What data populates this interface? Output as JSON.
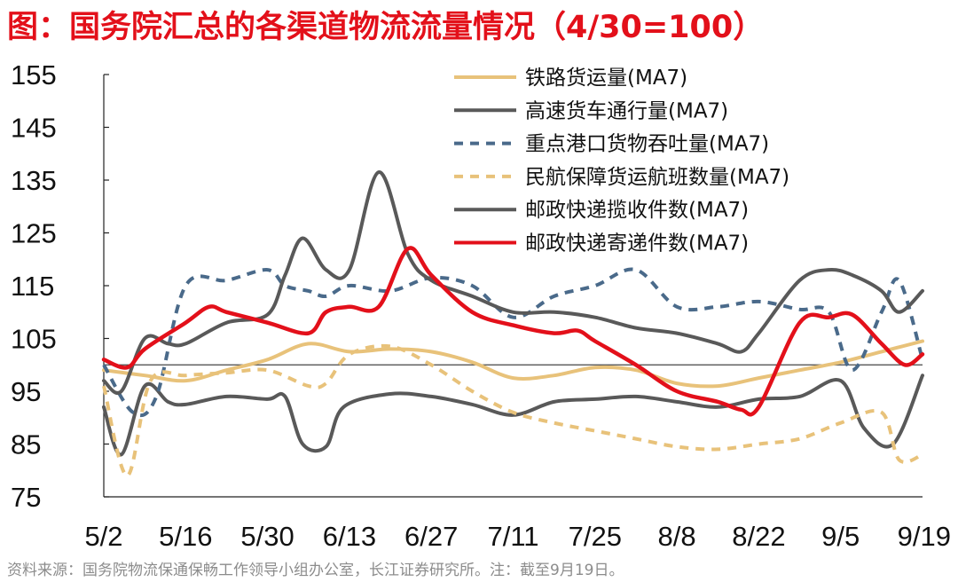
{
  "title": "图：国务院汇总的各渠道物流流量情况（4/30=100）",
  "source": "资料来源：国务院物流保通保畅工作领导小组办公室，长江证券研究所。注：截至9月19日。",
  "chart_data": {
    "type": "line",
    "title": "图：国务院汇总的各渠道物流流量情况（4/30=100）",
    "xlabel": "",
    "ylabel": "",
    "x_start": "5/2",
    "x_end": "9/19",
    "x_ticks": [
      "5/2",
      "5/16",
      "5/30",
      "6/13",
      "6/27",
      "7/11",
      "7/25",
      "8/8",
      "8/22",
      "9/5",
      "9/19"
    ],
    "y_ticks": [
      155,
      145,
      135,
      125,
      115,
      105,
      95,
      85,
      75
    ],
    "ylim": [
      75,
      155
    ],
    "baseline": 100,
    "legend_position": "top-right",
    "series": [
      {
        "name": "铁路货运量(MA7)",
        "color": "#e8c27a",
        "dash": "solid",
        "points": [
          [
            "5/2",
            99
          ],
          [
            "5/9",
            98
          ],
          [
            "5/16",
            97
          ],
          [
            "5/23",
            99
          ],
          [
            "5/30",
            101
          ],
          [
            "6/6",
            104
          ],
          [
            "6/13",
            102.5
          ],
          [
            "6/20",
            103
          ],
          [
            "6/27",
            102.5
          ],
          [
            "7/4",
            100.5
          ],
          [
            "7/11",
            97.5
          ],
          [
            "7/18",
            98
          ],
          [
            "7/25",
            99.5
          ],
          [
            "8/1",
            99
          ],
          [
            "8/8",
            96.5
          ],
          [
            "8/15",
            96
          ],
          [
            "8/22",
            97.5
          ],
          [
            "8/29",
            99
          ],
          [
            "9/5",
            100.5
          ],
          [
            "9/12",
            102.5
          ],
          [
            "9/19",
            104.5
          ]
        ]
      },
      {
        "name": "高速货车通行量(MA7)",
        "color": "#595959",
        "dash": "solid",
        "points": [
          [
            "5/2",
            92
          ],
          [
            "5/5",
            83
          ],
          [
            "5/9",
            96
          ],
          [
            "5/13",
            93
          ],
          [
            "5/16",
            92.5
          ],
          [
            "5/23",
            94
          ],
          [
            "5/30",
            93.5
          ],
          [
            "6/2",
            94
          ],
          [
            "6/5",
            85
          ],
          [
            "6/9",
            84.5
          ],
          [
            "6/12",
            92
          ],
          [
            "6/20",
            94.5
          ],
          [
            "6/27",
            94
          ],
          [
            "7/4",
            92.5
          ],
          [
            "7/11",
            90.5
          ],
          [
            "7/18",
            93
          ],
          [
            "7/25",
            93.5
          ],
          [
            "8/1",
            94
          ],
          [
            "8/8",
            93
          ],
          [
            "8/15",
            92
          ],
          [
            "8/22",
            93.5
          ],
          [
            "8/29",
            94
          ],
          [
            "9/5",
            97
          ],
          [
            "9/9",
            88
          ],
          [
            "9/14",
            85
          ],
          [
            "9/19",
            98
          ]
        ]
      },
      {
        "name": "重点港口货物吞吐量(MA7)",
        "color": "#4a6a8a",
        "dash": "dash",
        "points": [
          [
            "5/2",
            100
          ],
          [
            "5/7",
            91
          ],
          [
            "5/11",
            94
          ],
          [
            "5/16",
            115
          ],
          [
            "5/23",
            116
          ],
          [
            "5/30",
            118
          ],
          [
            "6/2",
            115
          ],
          [
            "6/6",
            114
          ],
          [
            "6/9",
            113
          ],
          [
            "6/13",
            115
          ],
          [
            "6/20",
            114
          ],
          [
            "6/27",
            116.5
          ],
          [
            "7/4",
            115
          ],
          [
            "7/11",
            109
          ],
          [
            "7/18",
            113
          ],
          [
            "7/25",
            115
          ],
          [
            "8/1",
            118
          ],
          [
            "8/8",
            111
          ],
          [
            "8/15",
            111
          ],
          [
            "8/22",
            112
          ],
          [
            "8/29",
            110.5
          ],
          [
            "9/3",
            110
          ],
          [
            "9/7",
            99
          ],
          [
            "9/12",
            110
          ],
          [
            "9/15",
            116
          ],
          [
            "9/19",
            101
          ]
        ]
      },
      {
        "name": "民航保障货运航班数量(MA7)",
        "color": "#e8c27a",
        "dash": "dash",
        "points": [
          [
            "5/2",
            96
          ],
          [
            "5/6",
            79
          ],
          [
            "5/10",
            97
          ],
          [
            "5/16",
            98
          ],
          [
            "5/23",
            98.5
          ],
          [
            "5/30",
            99
          ],
          [
            "6/6",
            96
          ],
          [
            "6/9",
            96.5
          ],
          [
            "6/13",
            102
          ],
          [
            "6/20",
            103.5
          ],
          [
            "6/27",
            100
          ],
          [
            "7/4",
            95
          ],
          [
            "7/11",
            91
          ],
          [
            "7/18",
            89
          ],
          [
            "7/25",
            87.5
          ],
          [
            "8/1",
            86
          ],
          [
            "8/8",
            84.5
          ],
          [
            "8/15",
            84
          ],
          [
            "8/22",
            85
          ],
          [
            "8/29",
            86
          ],
          [
            "9/5",
            89
          ],
          [
            "9/12",
            91
          ],
          [
            "9/15",
            82
          ],
          [
            "9/19",
            83
          ]
        ]
      },
      {
        "name": "邮政快递揽收件数(MA7)",
        "color": "#595959",
        "dash": "solid",
        "points": [
          [
            "5/2",
            97
          ],
          [
            "5/5",
            95
          ],
          [
            "5/9",
            105
          ],
          [
            "5/13",
            104
          ],
          [
            "5/16",
            104
          ],
          [
            "5/23",
            108
          ],
          [
            "5/30",
            109.5
          ],
          [
            "6/2",
            117
          ],
          [
            "6/5",
            124
          ],
          [
            "6/9",
            118
          ],
          [
            "6/13",
            118
          ],
          [
            "6/18",
            136.5
          ],
          [
            "6/23",
            121
          ],
          [
            "6/27",
            116
          ],
          [
            "7/4",
            113
          ],
          [
            "7/11",
            110
          ],
          [
            "7/18",
            110
          ],
          [
            "7/25",
            109
          ],
          [
            "8/1",
            107
          ],
          [
            "8/8",
            106
          ],
          [
            "8/15",
            104
          ],
          [
            "8/19",
            102.5
          ],
          [
            "8/22",
            106
          ],
          [
            "8/29",
            116
          ],
          [
            "9/3",
            118
          ],
          [
            "9/7",
            117
          ],
          [
            "9/12",
            114
          ],
          [
            "9/15",
            110
          ],
          [
            "9/19",
            114
          ]
        ]
      },
      {
        "name": "邮政快递寄递件数(MA7)",
        "color": "#e3101a",
        "dash": "solid",
        "points": [
          [
            "5/2",
            101
          ],
          [
            "5/6",
            99.5
          ],
          [
            "5/9",
            103
          ],
          [
            "5/16",
            108
          ],
          [
            "5/20",
            111
          ],
          [
            "5/23",
            110
          ],
          [
            "5/30",
            108
          ],
          [
            "6/6",
            106
          ],
          [
            "6/9",
            110
          ],
          [
            "6/13",
            111
          ],
          [
            "6/18",
            111
          ],
          [
            "6/23",
            122
          ],
          [
            "6/27",
            117
          ],
          [
            "7/4",
            110
          ],
          [
            "7/11",
            107.5
          ],
          [
            "7/18",
            106
          ],
          [
            "7/22",
            106.5
          ],
          [
            "7/25",
            104.5
          ],
          [
            "8/1",
            100
          ],
          [
            "8/8",
            95
          ],
          [
            "8/15",
            93
          ],
          [
            "8/19",
            91.5
          ],
          [
            "8/22",
            92
          ],
          [
            "8/29",
            108
          ],
          [
            "9/3",
            109
          ],
          [
            "9/7",
            109.5
          ],
          [
            "9/12",
            104
          ],
          [
            "9/16",
            100
          ],
          [
            "9/19",
            102
          ]
        ]
      }
    ]
  }
}
